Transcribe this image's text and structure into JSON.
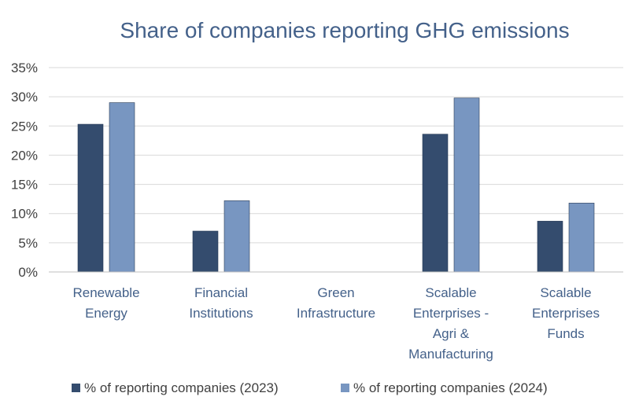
{
  "chart_data": {
    "type": "bar",
    "title": "Share of companies reporting GHG emissions",
    "xlabel": "",
    "ylabel": "",
    "ylim": [
      0,
      35
    ],
    "yticks": [
      0,
      5,
      10,
      15,
      20,
      25,
      30,
      35
    ],
    "ytick_labels": [
      "0%",
      "5%",
      "10%",
      "15%",
      "20%",
      "25%",
      "30%",
      "35%"
    ],
    "grid": true,
    "legend_position": "bottom",
    "categories": [
      [
        "Renewable",
        "Energy"
      ],
      [
        "Financial",
        "Institutions"
      ],
      [
        "Green",
        "Infrastructure"
      ],
      [
        "Scalable",
        "Enterprises -",
        "Agri &",
        "Manufacturing"
      ],
      [
        "Scalable",
        "Enterprises",
        "Funds"
      ]
    ],
    "series": [
      {
        "name": "% of reporting companies (2023)",
        "color": "#344c6e",
        "values": [
          25.3,
          7.0,
          0,
          23.6,
          8.7
        ]
      },
      {
        "name": "% of reporting companies (2024)",
        "color": "#7896c1",
        "values": [
          29.0,
          12.2,
          0,
          29.8,
          11.8
        ]
      }
    ]
  }
}
